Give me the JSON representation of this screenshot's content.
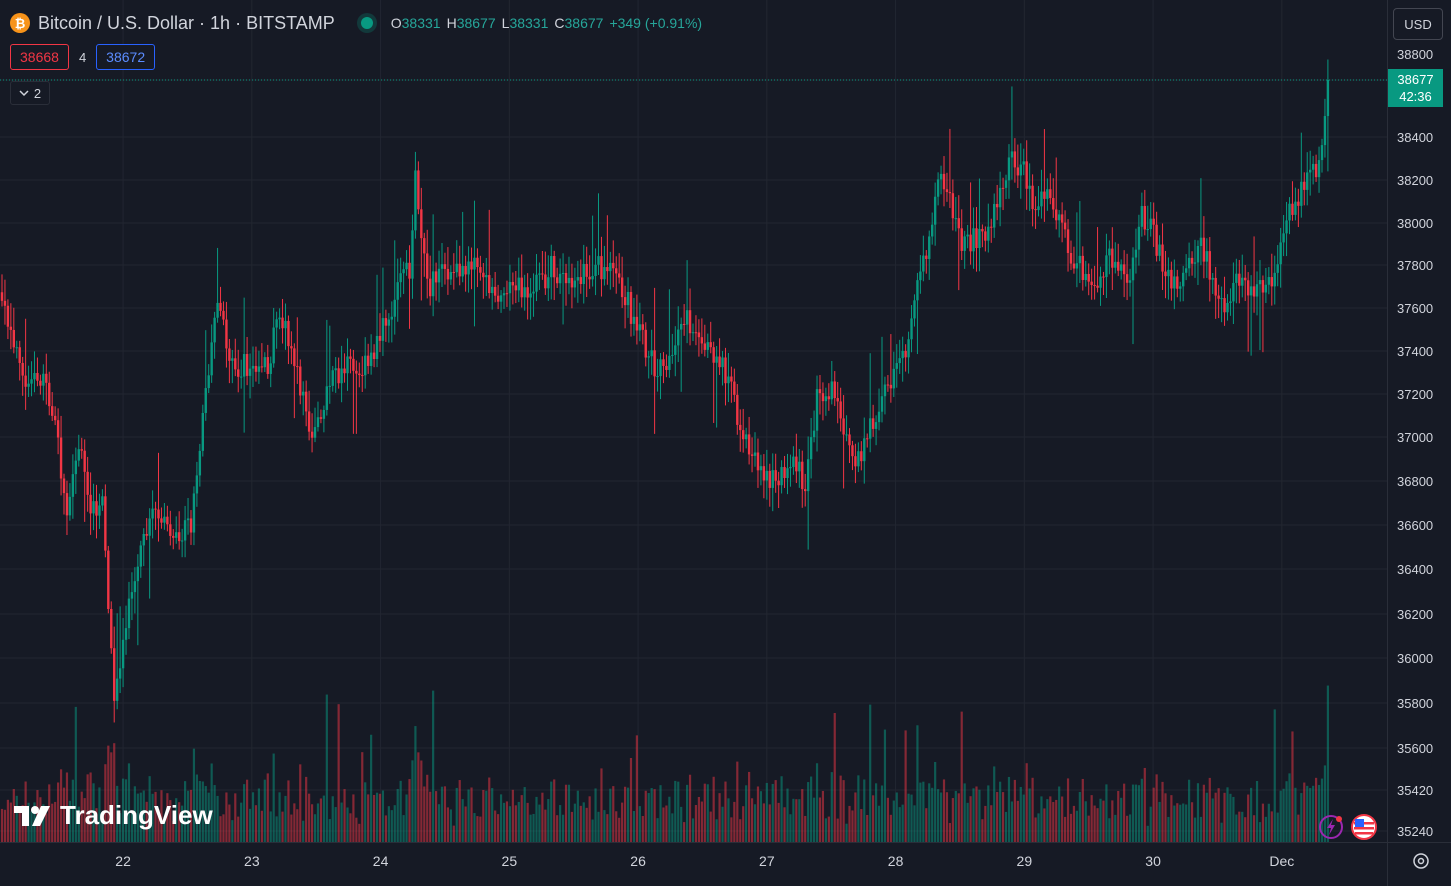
{
  "header": {
    "symbol_icon": "bitcoin-icon",
    "title": "Bitcoin / U.S. Dollar · 1h · BITSTAMP",
    "open_key": "O",
    "open": "38331",
    "high_key": "H",
    "high": "38677",
    "low_key": "L",
    "low": "38331",
    "close_key": "C",
    "close": "38677",
    "change": "+349 (+0.91%)"
  },
  "trade": {
    "sell": "38668",
    "spread": "4",
    "buy": "38672"
  },
  "collapse": {
    "count": "2",
    "icon": "chevron-down-icon"
  },
  "currency": "USD",
  "last_price": {
    "value": "38677",
    "countdown": "42:36"
  },
  "brand": "TradingView",
  "colors": {
    "up": "#089981",
    "down": "#f23645",
    "background": "#161a25",
    "grid": "#222631"
  },
  "chart_data": {
    "type": "candlestick",
    "interval": "1h",
    "y_ticks": [
      38800,
      38600,
      38400,
      38200,
      38000,
      37800,
      37600,
      37400,
      37200,
      37000,
      36800,
      36600,
      36400,
      36200,
      36000,
      35800,
      35600,
      35420,
      35240
    ],
    "x_ticks": [
      "22",
      "23",
      "24",
      "25",
      "26",
      "27",
      "28",
      "29",
      "30",
      "Dec"
    ],
    "anchors": [
      [
        0,
        37650
      ],
      [
        8,
        37300
      ],
      [
        14,
        37300
      ],
      [
        18,
        37100
      ],
      [
        22,
        36600
      ],
      [
        26,
        37000
      ],
      [
        30,
        36700
      ],
      [
        34,
        36700
      ],
      [
        38,
        35800
      ],
      [
        41,
        36100
      ],
      [
        46,
        36450
      ],
      [
        52,
        36700
      ],
      [
        58,
        36550
      ],
      [
        64,
        36600
      ],
      [
        69,
        37250
      ],
      [
        73,
        37650
      ],
      [
        78,
        37350
      ],
      [
        84,
        37350
      ],
      [
        90,
        37350
      ],
      [
        94,
        37600
      ],
      [
        99,
        37350
      ],
      [
        104,
        37050
      ],
      [
        108,
        37100
      ],
      [
        112,
        37300
      ],
      [
        118,
        37350
      ],
      [
        124,
        37350
      ],
      [
        130,
        37550
      ],
      [
        134,
        37700
      ],
      [
        138,
        37800
      ],
      [
        140,
        38250
      ],
      [
        144,
        37700
      ],
      [
        150,
        37800
      ],
      [
        156,
        37800
      ],
      [
        162,
        37800
      ],
      [
        168,
        37650
      ],
      [
        174,
        37700
      ],
      [
        180,
        37700
      ],
      [
        186,
        37800
      ],
      [
        192,
        37750
      ],
      [
        198,
        37800
      ],
      [
        204,
        37800
      ],
      [
        210,
        37700
      ],
      [
        216,
        37500
      ],
      [
        222,
        37300
      ],
      [
        226,
        37400
      ],
      [
        230,
        37600
      ],
      [
        234,
        37500
      ],
      [
        240,
        37400
      ],
      [
        246,
        37300
      ],
      [
        250,
        37050
      ],
      [
        256,
        36900
      ],
      [
        260,
        36800
      ],
      [
        264,
        36850
      ],
      [
        268,
        36900
      ],
      [
        272,
        36800
      ],
      [
        276,
        37200
      ],
      [
        280,
        37250
      ],
      [
        286,
        37050
      ],
      [
        290,
        36900
      ],
      [
        294,
        37050
      ],
      [
        298,
        37200
      ],
      [
        302,
        37300
      ],
      [
        306,
        37400
      ],
      [
        310,
        37700
      ],
      [
        314,
        37950
      ],
      [
        318,
        38250
      ],
      [
        322,
        38050
      ],
      [
        326,
        37900
      ],
      [
        330,
        37950
      ],
      [
        334,
        38000
      ],
      [
        338,
        38150
      ],
      [
        342,
        38300
      ],
      [
        346,
        38250
      ],
      [
        350,
        38050
      ],
      [
        354,
        38150
      ],
      [
        358,
        38050
      ],
      [
        362,
        37850
      ],
      [
        366,
        37800
      ],
      [
        370,
        37700
      ],
      [
        374,
        37850
      ],
      [
        378,
        37800
      ],
      [
        382,
        37750
      ],
      [
        386,
        38050
      ],
      [
        390,
        37950
      ],
      [
        394,
        37800
      ],
      [
        398,
        37700
      ],
      [
        402,
        37800
      ],
      [
        406,
        37900
      ],
      [
        410,
        37750
      ],
      [
        414,
        37650
      ],
      [
        418,
        37750
      ],
      [
        422,
        37700
      ],
      [
        426,
        37700
      ],
      [
        430,
        37750
      ],
      [
        434,
        38000
      ],
      [
        438,
        38100
      ],
      [
        442,
        38200
      ],
      [
        446,
        38300
      ],
      [
        449,
        38677
      ]
    ],
    "volume_max": 35000
  }
}
